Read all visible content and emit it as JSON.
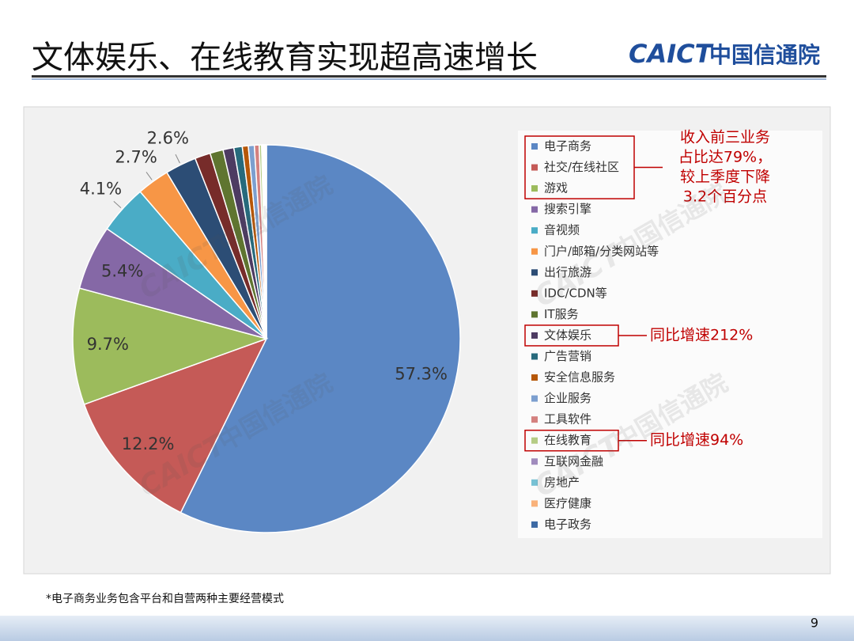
{
  "header": {
    "title": "文体娱乐、在线教育实现超高速增长",
    "logo_mark": "CAICT",
    "logo_text": "中国信通院"
  },
  "chart_data": {
    "type": "pie",
    "categories": [
      "电子商务",
      "社交/在线社区",
      "游戏",
      "搜索引擎",
      "音视频",
      "门户/邮箱/分类网站等",
      "出行旅游",
      "IDC/CDN等",
      "IT服务",
      "文体娱乐",
      "广告营销",
      "安全信息服务",
      "企业服务",
      "工具软件",
      "在线教育",
      "互联网金融",
      "房地产",
      "医疗健康",
      "电子政务"
    ],
    "values": [
      57.3,
      12.2,
      9.7,
      5.4,
      4.1,
      2.7,
      2.6,
      1.3,
      1.1,
      0.9,
      0.7,
      0.5,
      0.5,
      0.4,
      0.2,
      0.1,
      0.1,
      0.1,
      0.1
    ],
    "value_labels": [
      "57.3%",
      "12.2%",
      "9.7%",
      "5.4%",
      "4.1%",
      "2.7%",
      "2.6%",
      null,
      null,
      null,
      null,
      null,
      null,
      null,
      null,
      null,
      null,
      null,
      null
    ],
    "colors": [
      "#5b87c4",
      "#c55a57",
      "#9cbb5c",
      "#8568a6",
      "#4aacc6",
      "#f79646",
      "#2c4d75",
      "#772c2a",
      "#5f7530",
      "#4d3b62",
      "#276a7c",
      "#b65708",
      "#7c9fcf",
      "#d4817f",
      "#b5cc85",
      "#a08bbd",
      "#77c1d4",
      "#f9b27a",
      "#3d6aa4"
    ],
    "legend": "right",
    "annotations": [
      {
        "target": [
          0,
          2
        ],
        "lines": [
          "收入前三业务",
          "占比达79%，",
          "较上季度下降",
          "3.2个百分点"
        ]
      },
      {
        "target": [
          9,
          9
        ],
        "lines": [
          "同比增速212%"
        ]
      },
      {
        "target": [
          14,
          14
        ],
        "lines": [
          "同比增速94%"
        ]
      }
    ]
  },
  "footnote": "*电子商务业务包含平台和自营两种主要经营模式",
  "page_number": "9"
}
